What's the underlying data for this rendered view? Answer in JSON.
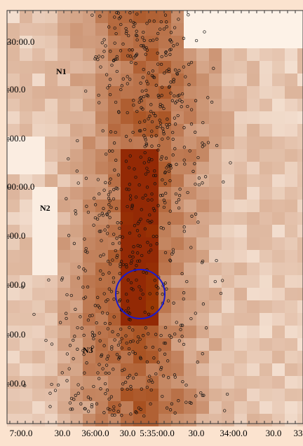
{
  "y_axis": {
    "labels": [
      "30:00.0",
      ":00.0",
      ":00.0",
      "00:00.0",
      ":00.0",
      ":00.0",
      ":00.0",
      ":00.0"
    ]
  },
  "x_axis": {
    "labels": [
      "7:00.0",
      "30.0",
      "36:00.0",
      "30.0",
      "5:35:00.0",
      "30.0",
      "34:00.0",
      "30.0",
      "33"
    ]
  },
  "regions": [
    {
      "label": "N1"
    },
    {
      "label": "N2"
    },
    {
      "label": "N3"
    }
  ]
}
